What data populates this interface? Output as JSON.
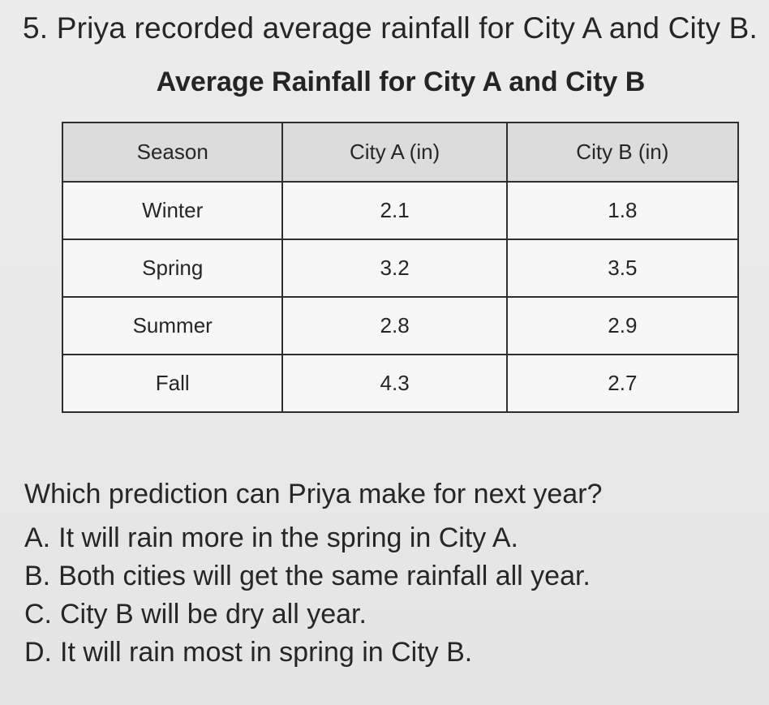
{
  "question": {
    "text": "5. Priya recorded average rainfall for City A and City B."
  },
  "table": {
    "title": "Average Rainfall for City A and City B",
    "headers": [
      "Season",
      "City A (in)",
      "City B (in)"
    ],
    "rows": [
      [
        "Winter",
        "2.1",
        "1.8"
      ],
      [
        "Spring",
        "3.2",
        "3.5"
      ],
      [
        "Summer",
        "2.8",
        "2.9"
      ],
      [
        "Fall",
        "4.3",
        "2.7"
      ]
    ]
  },
  "prompt": "Which prediction can Priya make for next year?",
  "choices": [
    {
      "letter": "A.",
      "text": "It will rain more in the spring in City A."
    },
    {
      "letter": "B.",
      "text": "Both cities will get the same rainfall all year."
    },
    {
      "letter": "C.",
      "text": "City B will be dry all year."
    },
    {
      "letter": "D.",
      "text": "It will rain most in spring in City B."
    }
  ]
}
